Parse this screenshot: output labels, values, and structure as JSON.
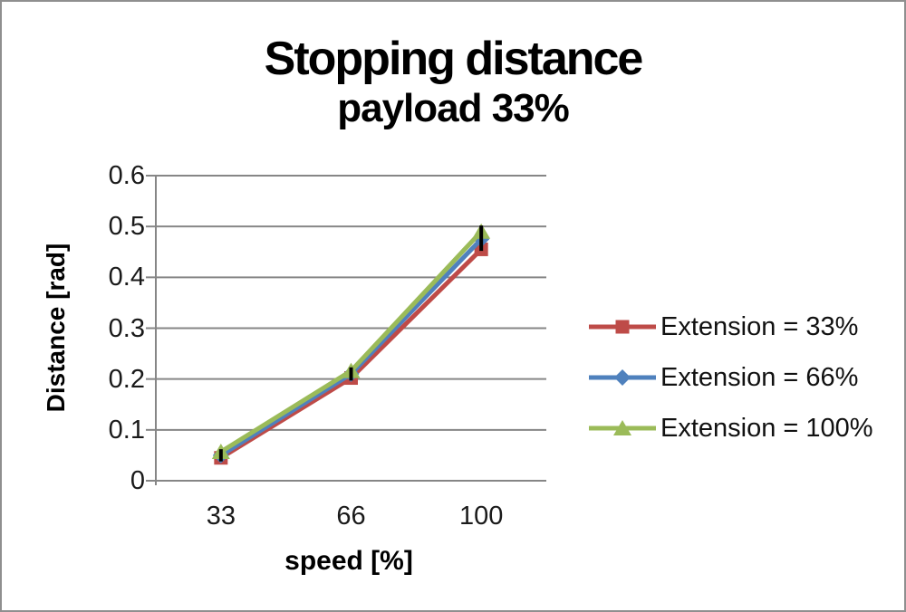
{
  "title": "Stopping distance",
  "subtitle": "payload 33%",
  "chart_data": {
    "type": "line",
    "title": "Stopping distance",
    "subtitle": "payload 33%",
    "xlabel": "speed [%]",
    "ylabel": "Distance [rad]",
    "categories": [
      "33",
      "66",
      "100"
    ],
    "ylim": [
      0,
      0.6
    ],
    "yticks": [
      0.6,
      0.5,
      0.4,
      0.3,
      0.2,
      0.1,
      0
    ],
    "grid": true,
    "legend_position": "right",
    "axis_color": "#868686",
    "series": [
      {
        "name": "Extension = 33%",
        "marker": "square",
        "color": "#be4b48",
        "values": [
          0.045,
          0.202,
          0.455
        ]
      },
      {
        "name": "Extension = 66%",
        "marker": "diamond",
        "color": "#4f81bd",
        "values": [
          0.05,
          0.21,
          0.475
        ]
      },
      {
        "name": "Extension = 100%",
        "marker": "triangle",
        "color": "#9bbb59",
        "values": [
          0.057,
          0.216,
          0.49
        ]
      }
    ],
    "error_bars": {
      "color": "#000000",
      "ranges": [
        [
          0.038,
          0.062
        ],
        [
          0.197,
          0.223
        ],
        [
          0.452,
          0.502
        ]
      ]
    }
  }
}
